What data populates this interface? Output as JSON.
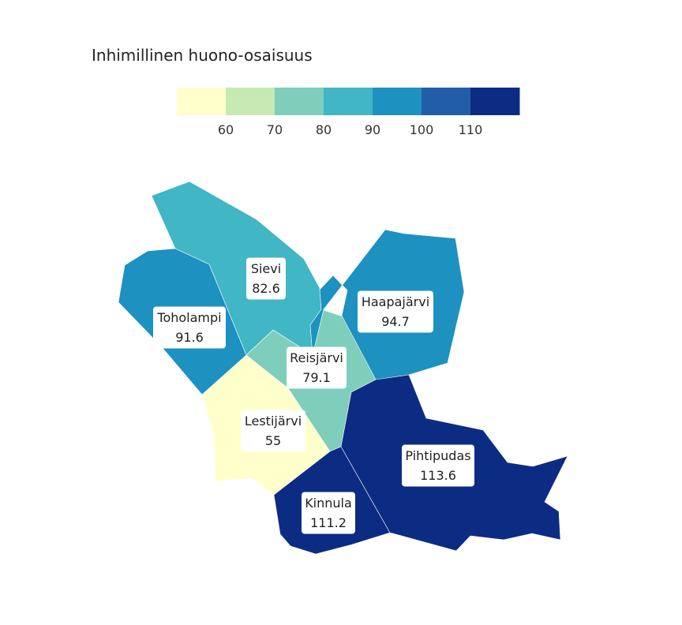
{
  "title": "Inhimillinen huono-osaisuus",
  "legend": {
    "colors": [
      "#ffffcc",
      "#c7e9b4",
      "#7fcdbb",
      "#41b6c4",
      "#1d91c0",
      "#225ea8",
      "#0c2c84"
    ],
    "ticks": [
      "60",
      "70",
      "80",
      "90",
      "100",
      "110"
    ]
  },
  "chart_data": {
    "type": "choropleth",
    "title": "Inhimillinen huono-osaisuus",
    "breaks": [
      60,
      70,
      80,
      90,
      100,
      110
    ],
    "regions": [
      {
        "name": "Sievi",
        "value": "82.6",
        "color": "#41b6c4"
      },
      {
        "name": "Toholampi",
        "value": "91.6",
        "color": "#1d91c0"
      },
      {
        "name": "Haapajärvi",
        "value": "94.7",
        "color": "#1d91c0"
      },
      {
        "name": "Reisjärvi",
        "value": "79.1",
        "color": "#7fcdbb"
      },
      {
        "name": "Lestijärvi",
        "value": "55",
        "color": "#ffffcc"
      },
      {
        "name": "Pihtipudas",
        "value": "113.6",
        "color": "#0c2c84"
      },
      {
        "name": "Kinnula",
        "value": "111.2",
        "color": "#0c2c84"
      }
    ]
  }
}
